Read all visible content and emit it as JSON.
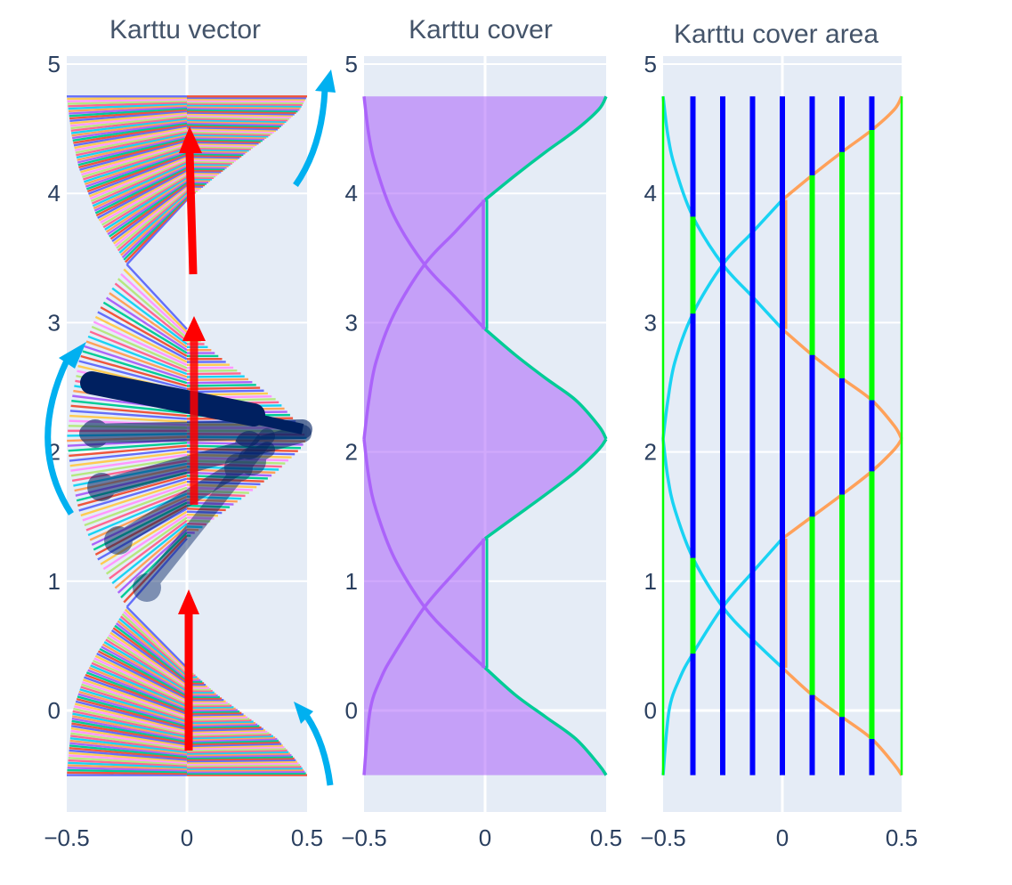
{
  "boundary_curves": {
    "A": [
      [
        -0.5,
        -0.5
      ],
      [
        -0.475,
        0
      ],
      [
        -0.43,
        0.25
      ],
      [
        -0.375,
        0.44
      ],
      [
        -0.25,
        0.8
      ],
      [
        -0.125,
        1.07
      ],
      [
        0,
        1.33
      ],
      [
        0.125,
        1.5
      ],
      [
        0.25,
        1.67
      ],
      [
        0.375,
        1.85
      ],
      [
        0.47,
        2.02
      ],
      [
        0.5,
        2.1
      ]
    ],
    "B": [
      [
        0.5,
        -0.5
      ],
      [
        0.47,
        -0.42
      ],
      [
        0.375,
        -0.22
      ],
      [
        0.25,
        -0.05
      ],
      [
        0.125,
        0.12
      ],
      [
        0,
        0.33
      ],
      [
        -0.125,
        0.55
      ],
      [
        -0.25,
        0.8
      ],
      [
        -0.375,
        1.18
      ],
      [
        -0.45,
        1.55
      ],
      [
        -0.48,
        1.8
      ],
      [
        -0.5,
        2.1
      ]
    ],
    "C": [
      [
        0.5,
        2.1
      ],
      [
        0.47,
        2.2
      ],
      [
        0.375,
        2.4
      ],
      [
        0.25,
        2.57
      ],
      [
        0.125,
        2.75
      ],
      [
        0,
        2.95
      ],
      [
        -0.125,
        3.2
      ],
      [
        -0.25,
        3.45
      ],
      [
        -0.375,
        3.82
      ],
      [
        -0.45,
        4.2
      ],
      [
        -0.48,
        4.45
      ],
      [
        -0.5,
        4.75
      ]
    ],
    "D": [
      [
        -0.5,
        2.1
      ],
      [
        -0.48,
        2.4
      ],
      [
        -0.45,
        2.7
      ],
      [
        -0.375,
        3.07
      ],
      [
        -0.25,
        3.45
      ],
      [
        -0.125,
        3.7
      ],
      [
        0,
        3.95
      ],
      [
        0.125,
        4.14
      ],
      [
        0.25,
        4.32
      ],
      [
        0.375,
        4.49
      ],
      [
        0.47,
        4.65
      ],
      [
        0.5,
        4.75
      ]
    ]
  },
  "chart_data": [
    {
      "type": "line",
      "title": "Karttu vector",
      "xlim": [
        -0.5,
        0.5
      ],
      "ylim": [
        -0.78,
        5.05
      ],
      "xticks": [
        -0.5,
        0,
        0.5
      ],
      "xtick_labels": [
        "−0.5",
        "0",
        "0.5"
      ],
      "yticks": [
        0,
        1,
        2,
        3,
        4,
        5
      ],
      "ytick_labels": [
        "0",
        "1",
        "2",
        "3",
        "4",
        "5"
      ],
      "grid": true,
      "fan_colors": [
        "#636efa",
        "#EF553B",
        "#00cc96",
        "#ab63fa",
        "#FFA15A",
        "#19d3f3",
        "#FF6692",
        "#B6E880",
        "#FF97FF",
        "#FECB52"
      ],
      "annotation_colors": {
        "arrow_up": "#ff0000",
        "rotation_arrow": "#00b0f0",
        "vector_stroke": "#002060"
      }
    },
    {
      "type": "area",
      "title": "Karttu cover",
      "xlim": [
        -0.5,
        0.5
      ],
      "ylim": [
        -0.78,
        5.05
      ],
      "xticks": [
        -0.5,
        0,
        0.5
      ],
      "xtick_labels": [
        "−0.5",
        "0",
        "0.5"
      ],
      "yticks": [
        0,
        1,
        2,
        3,
        4,
        5
      ],
      "ytick_labels": [
        "0",
        "1",
        "2",
        "3",
        "4",
        "5"
      ],
      "grid": true,
      "colors": {
        "fill": "#ab63fa",
        "left_line": "#ab63fa",
        "right_line": "#00cc96"
      }
    },
    {
      "type": "line",
      "title": "Karttu cover area",
      "xlim": [
        -0.5,
        0.5
      ],
      "ylim": [
        -0.78,
        5.05
      ],
      "xticks": [
        -0.5,
        0,
        0.5
      ],
      "xtick_labels": [
        "−0.5",
        "0",
        "0.5"
      ],
      "yticks": [
        0,
        1,
        2,
        3,
        4,
        5
      ],
      "ytick_labels": [
        "0",
        "1",
        "2",
        "3",
        "4",
        "5"
      ],
      "grid": true,
      "vertical_lines": [
        {
          "x": -0.5,
          "y_range": [
            -0.5,
            4.75
          ],
          "covered": [
            [
              -0.5,
              4.75
            ]
          ]
        },
        {
          "x": -0.375,
          "y_range": [
            -0.5,
            4.75
          ],
          "covered": [
            [
              0.44,
              1.18
            ],
            [
              3.07,
              3.82
            ]
          ]
        },
        {
          "x": -0.25,
          "y_range": [
            -0.5,
            4.75
          ],
          "covered": []
        },
        {
          "x": -0.125,
          "y_range": [
            -0.5,
            4.75
          ],
          "covered": []
        },
        {
          "x": 0,
          "y_range": [
            -0.5,
            4.75
          ],
          "covered": []
        },
        {
          "x": 0.125,
          "y_range": [
            -0.5,
            4.75
          ],
          "covered": [
            [
              0.12,
              1.5
            ],
            [
              2.75,
              4.14
            ]
          ]
        },
        {
          "x": 0.25,
          "y_range": [
            -0.5,
            4.75
          ],
          "covered": [
            [
              -0.05,
              1.67
            ],
            [
              2.57,
              4.32
            ]
          ]
        },
        {
          "x": 0.375,
          "y_range": [
            -0.5,
            4.75
          ],
          "covered": [
            [
              -0.22,
              1.85
            ],
            [
              2.4,
              4.49
            ]
          ]
        },
        {
          "x": 0.5,
          "y_range": [
            -0.5,
            4.75
          ],
          "covered": [
            [
              -0.5,
              4.75
            ]
          ]
        }
      ],
      "colors": {
        "uncovered": "#0000ff",
        "covered": "#00ff00",
        "left_curve": "#19d3f3",
        "right_curve": "#FFA15A"
      }
    }
  ]
}
